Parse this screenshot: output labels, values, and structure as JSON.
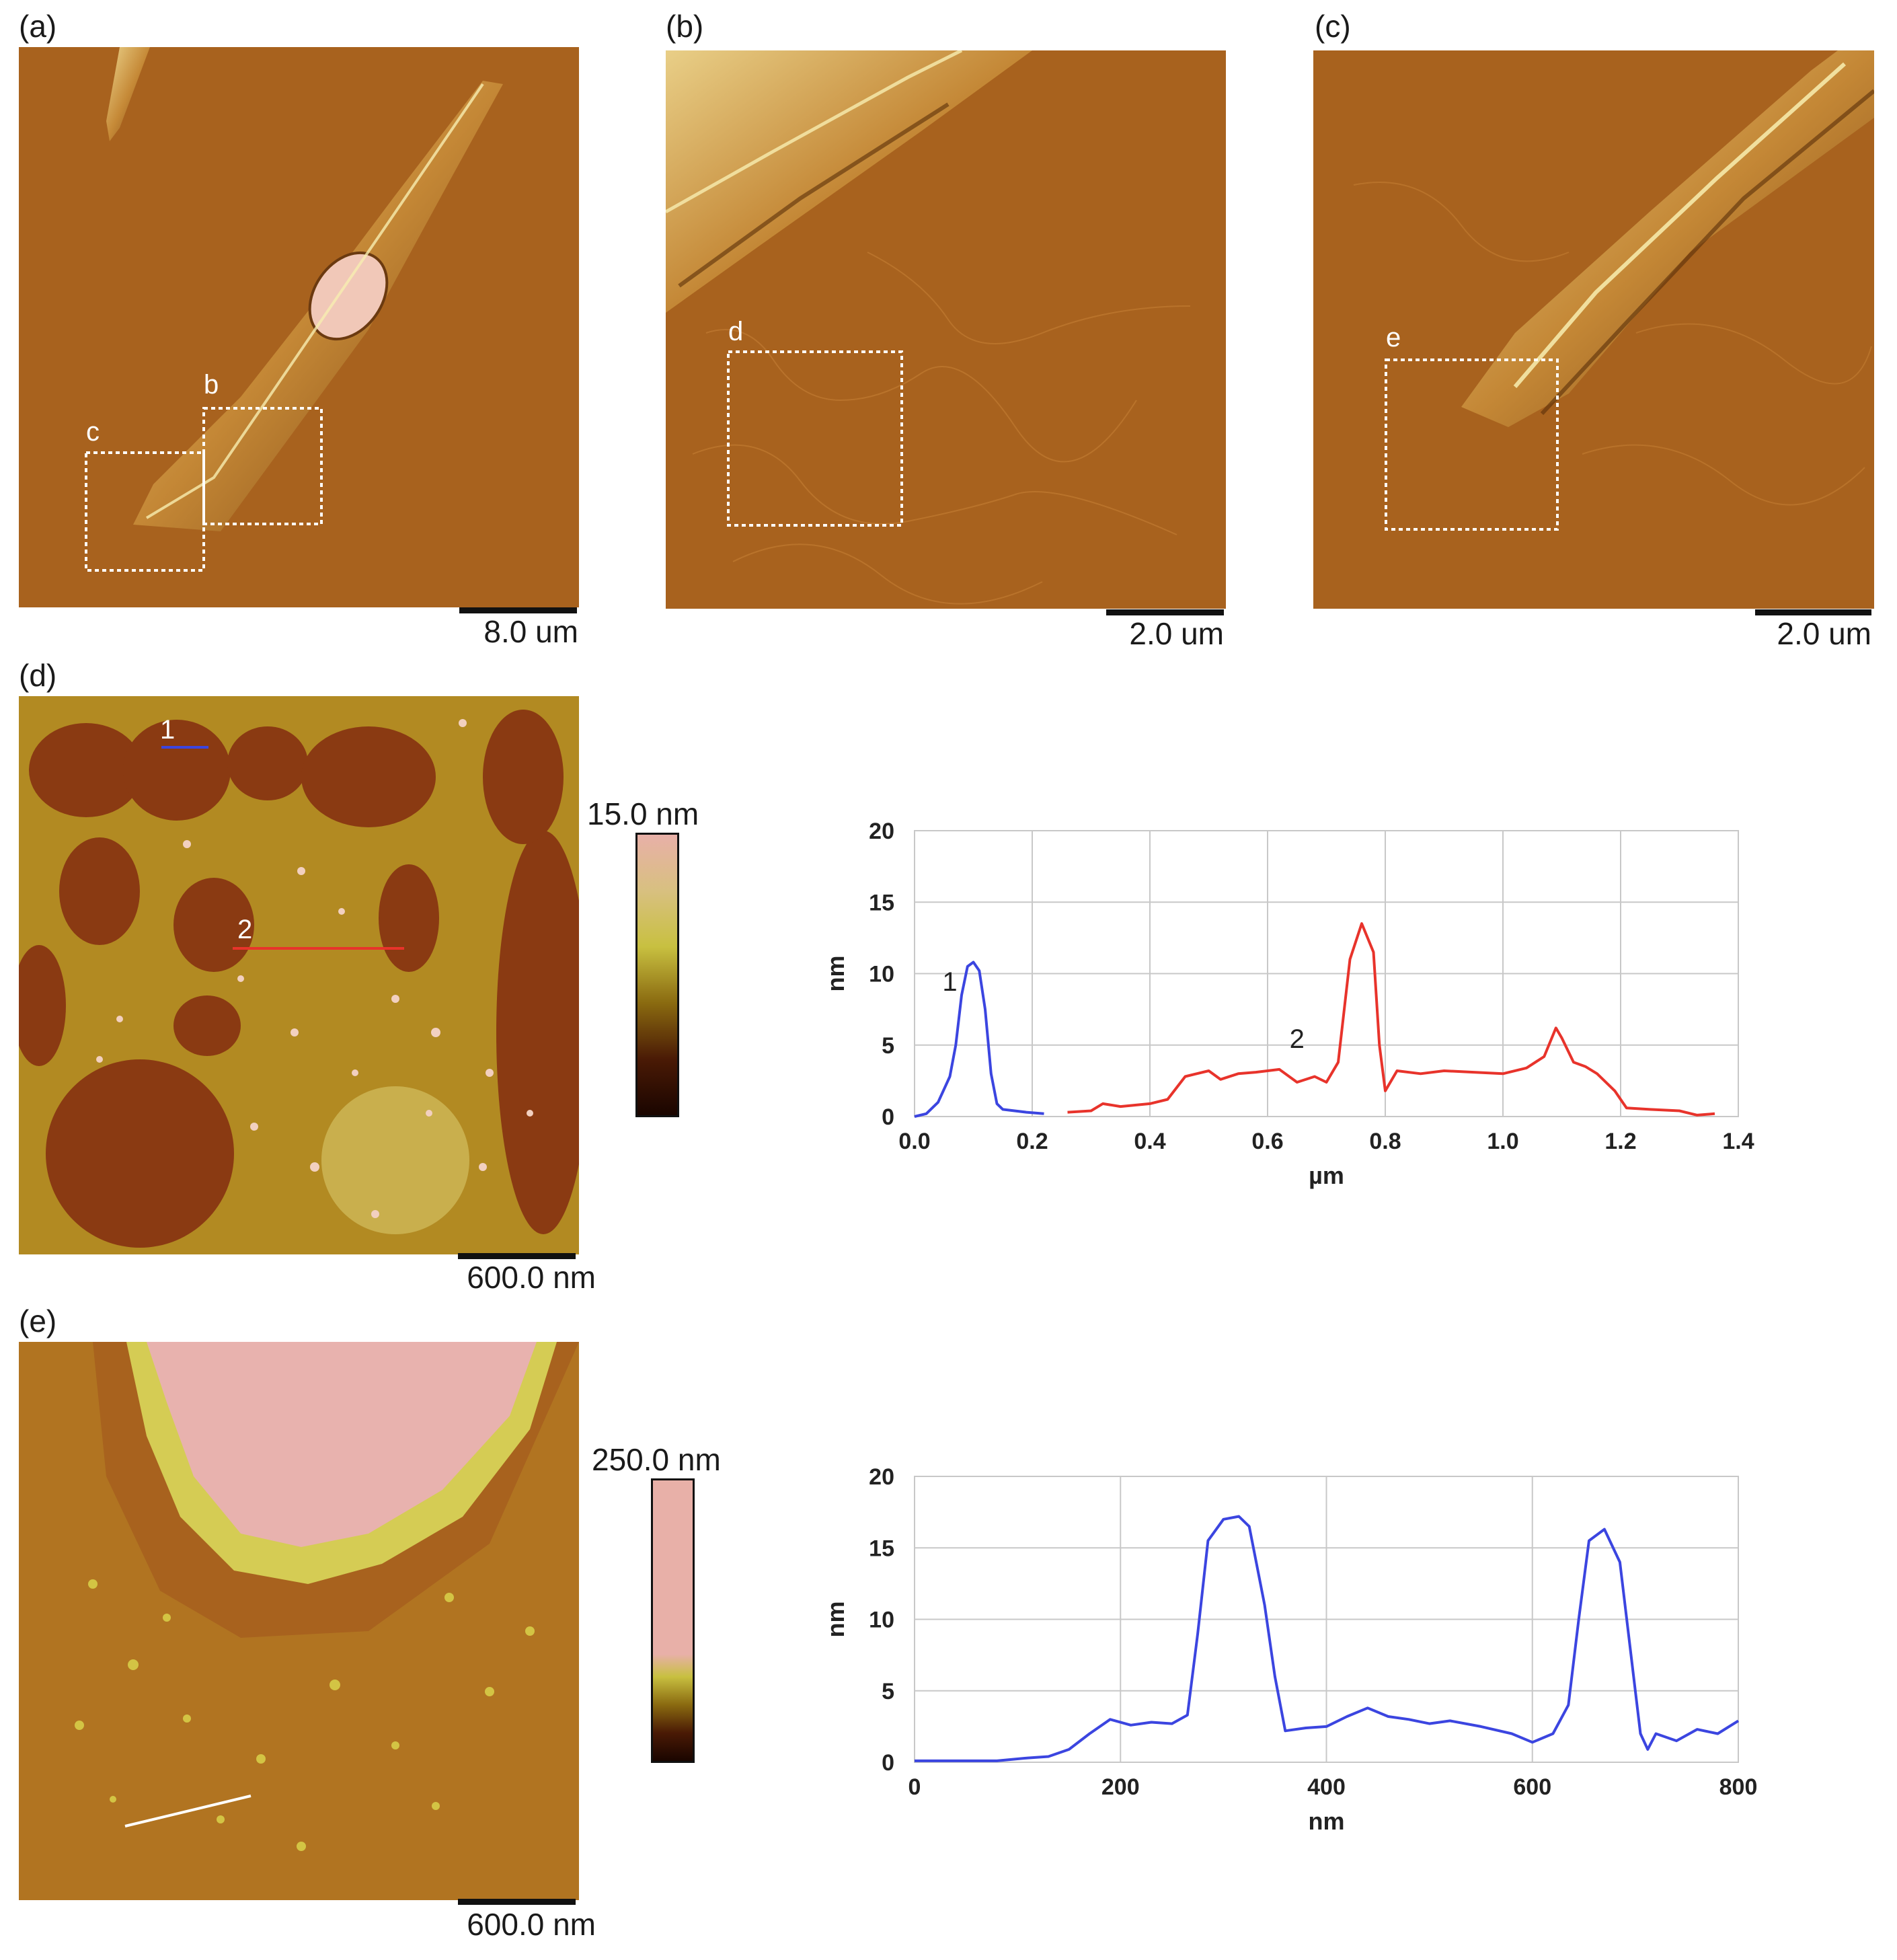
{
  "panels": {
    "a": {
      "label": "(a)",
      "scale": "8.0 um",
      "roi_labels": [
        "b",
        "c"
      ]
    },
    "b": {
      "label": "(b)",
      "scale": "2.0 um",
      "roi_labels": [
        "d"
      ]
    },
    "c": {
      "label": "(c)",
      "scale": "2.0 um",
      "roi_labels": [
        "e"
      ]
    },
    "d": {
      "label": "(d)",
      "scale": "600.0 nm",
      "colorbar": "15.0 nm",
      "line_labels": [
        "1",
        "2"
      ]
    },
    "e": {
      "label": "(e)",
      "scale": "600.0 nm",
      "colorbar": "250.0 nm"
    }
  },
  "colors": {
    "afm_brown": "#a8621e",
    "line1": "#3b45e0",
    "line2": "#e8332b",
    "grid": "#c8c8c8"
  },
  "chart_data": [
    {
      "type": "line",
      "xlabel": "µm",
      "ylabel": "nm",
      "xlim": [
        0,
        1.4
      ],
      "ylim": [
        0,
        20
      ],
      "xticks": [
        "0.0",
        "0.2",
        "0.4",
        "0.6",
        "0.8",
        "1.0",
        "1.2",
        "1.4"
      ],
      "yticks": [
        "0",
        "5",
        "10",
        "15",
        "20"
      ],
      "grid": true,
      "series": [
        {
          "name": "1",
          "color": "#3b45e0",
          "x": [
            0.0,
            0.02,
            0.04,
            0.06,
            0.07,
            0.08,
            0.09,
            0.1,
            0.11,
            0.12,
            0.13,
            0.14,
            0.15,
            0.17,
            0.19,
            0.22
          ],
          "y": [
            0.0,
            0.2,
            1.0,
            2.8,
            5.0,
            8.5,
            10.5,
            10.8,
            10.2,
            7.5,
            3.0,
            0.9,
            0.5,
            0.4,
            0.3,
            0.2
          ]
        },
        {
          "name": "2",
          "color": "#e8332b",
          "x": [
            0.26,
            0.3,
            0.32,
            0.35,
            0.4,
            0.43,
            0.46,
            0.5,
            0.52,
            0.55,
            0.58,
            0.62,
            0.65,
            0.68,
            0.7,
            0.72,
            0.74,
            0.76,
            0.78,
            0.79,
            0.8,
            0.82,
            0.86,
            0.9,
            0.95,
            1.0,
            1.04,
            1.07,
            1.09,
            1.1,
            1.12,
            1.14,
            1.16,
            1.19,
            1.21,
            1.25,
            1.3,
            1.33,
            1.36
          ],
          "y": [
            0.3,
            0.4,
            0.9,
            0.7,
            0.9,
            1.2,
            2.8,
            3.2,
            2.6,
            3.0,
            3.1,
            3.3,
            2.4,
            2.8,
            2.4,
            3.8,
            11.0,
            13.5,
            11.5,
            5.0,
            1.8,
            3.2,
            3.0,
            3.2,
            3.1,
            3.0,
            3.4,
            4.2,
            6.2,
            5.5,
            3.8,
            3.5,
            3.0,
            1.8,
            0.6,
            0.5,
            0.4,
            0.1,
            0.2
          ]
        }
      ]
    },
    {
      "type": "line",
      "xlabel": "nm",
      "ylabel": "nm",
      "xlim": [
        0,
        800
      ],
      "ylim": [
        0,
        20
      ],
      "xticks": [
        "0",
        "200",
        "400",
        "600",
        "800"
      ],
      "yticks": [
        "0",
        "5",
        "10",
        "15",
        "20"
      ],
      "grid": true,
      "series": [
        {
          "name": "",
          "color": "#3b45e0",
          "x": [
            0,
            40,
            80,
            110,
            130,
            150,
            170,
            190,
            210,
            230,
            250,
            265,
            275,
            285,
            300,
            315,
            325,
            340,
            350,
            360,
            380,
            400,
            420,
            440,
            460,
            480,
            500,
            520,
            550,
            580,
            600,
            620,
            635,
            645,
            655,
            670,
            685,
            695,
            705,
            712,
            720,
            740,
            760,
            780,
            800
          ],
          "y": [
            0.1,
            0.1,
            0.1,
            0.3,
            0.4,
            0.9,
            2.0,
            3.0,
            2.6,
            2.8,
            2.7,
            3.3,
            9.0,
            15.5,
            17.0,
            17.2,
            16.5,
            11.0,
            6.0,
            2.2,
            2.4,
            2.5,
            3.2,
            3.8,
            3.2,
            3.0,
            2.7,
            2.9,
            2.5,
            2.0,
            1.4,
            2.0,
            4.0,
            10.0,
            15.5,
            16.3,
            14.0,
            8.0,
            2.0,
            0.9,
            2.0,
            1.5,
            2.3,
            2.0,
            2.9
          ]
        }
      ]
    }
  ]
}
